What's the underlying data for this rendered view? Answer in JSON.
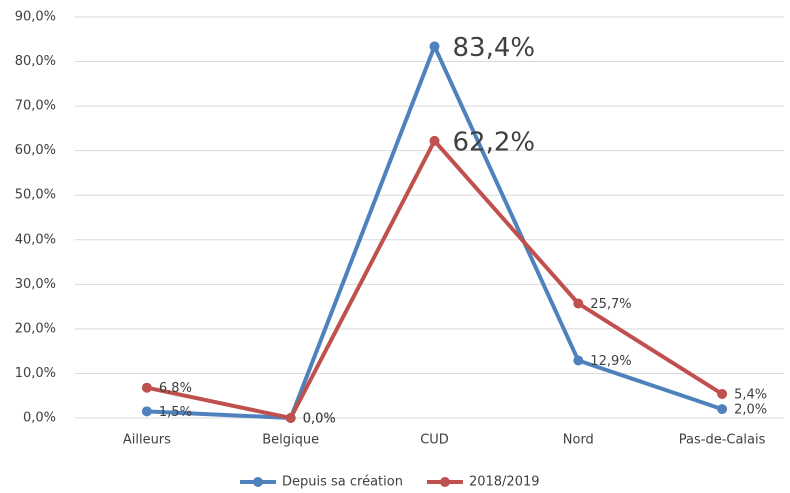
{
  "chart_data": {
    "type": "line",
    "categories": [
      "Ailleurs",
      "Belgique",
      "CUD",
      "Nord",
      "Pas-de-Calais"
    ],
    "series": [
      {
        "name": "Depuis sa création",
        "color": "#4f81bd",
        "values": [
          1.5,
          0.0,
          83.4,
          12.9,
          2.0
        ],
        "value_labels": [
          "1,5%",
          "0,0%",
          "83,4%",
          "12,9%",
          "2,0%"
        ]
      },
      {
        "name": "2018/2019",
        "color": "#c0504d",
        "values": [
          6.8,
          0.0,
          62.2,
          25.7,
          5.4
        ],
        "value_labels": [
          "6,8%",
          "0,0%",
          "62,2%",
          "25,7%",
          "5,4%"
        ]
      }
    ],
    "ylim": [
      0,
      90
    ],
    "yticks": [
      {
        "value": 0,
        "label": "0,0%"
      },
      {
        "value": 10,
        "label": "10,0%"
      },
      {
        "value": 20,
        "label": "20,0%"
      },
      {
        "value": 30,
        "label": "30,0%"
      },
      {
        "value": 40,
        "label": "40,0%"
      },
      {
        "value": 50,
        "label": "50,0%"
      },
      {
        "value": 60,
        "label": "60,0%"
      },
      {
        "value": 70,
        "label": "70,0%"
      },
      {
        "value": 80,
        "label": "80,0%"
      },
      {
        "value": 90,
        "label": "90,0%"
      }
    ],
    "grid": true,
    "legend": "bottom"
  }
}
